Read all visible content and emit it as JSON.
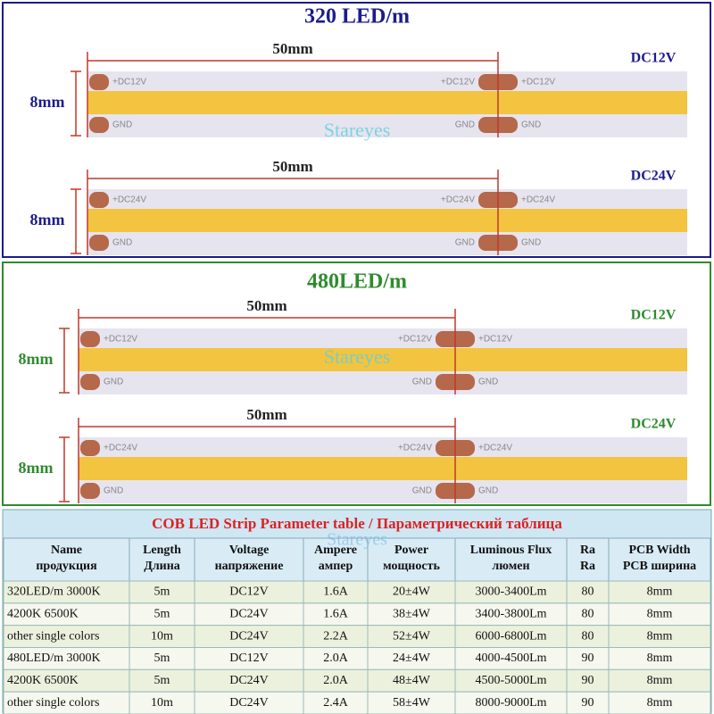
{
  "sections": [
    {
      "title": "320 LED/m",
      "watermark": "Stareyes",
      "strips": [
        {
          "length": "50mm",
          "width": "8mm",
          "voltage": "DC12V",
          "positive_label": "+DC12V",
          "ground_label": "GND"
        },
        {
          "length": "50mm",
          "width": "8mm",
          "voltage": "DC24V",
          "positive_label": "+DC24V",
          "ground_label": "GND"
        }
      ]
    },
    {
      "title": "480LED/m",
      "watermark": "Stareyes",
      "strips": [
        {
          "length": "50mm",
          "width": "8mm",
          "voltage": "DC12V",
          "positive_label": "+DC12V",
          "ground_label": "GND"
        },
        {
          "length": "50mm",
          "width": "8mm",
          "voltage": "DC24V",
          "positive_label": "+DC24V",
          "ground_label": "GND"
        }
      ]
    }
  ],
  "table": {
    "title": "COB LED Strip Parameter table / Параметрический таблица",
    "watermark": "Stareyes",
    "header": [
      [
        "Name",
        "продукция"
      ],
      [
        "Length",
        "Длина"
      ],
      [
        "Voltage",
        "напряжение"
      ],
      [
        "Ampere",
        "ампер"
      ],
      [
        "Power",
        "мощность"
      ],
      [
        "Luminous Flux",
        "люмен"
      ],
      [
        "Ra",
        "Ra"
      ],
      [
        "PCB Width",
        "PCB ширина"
      ]
    ],
    "rows": [
      [
        "320LED/m 3000K",
        "5m",
        "DC12V",
        "1.6A",
        "20±4W",
        "3000-3400Lm",
        "80",
        "8mm"
      ],
      [
        "4200K 6500K",
        "5m",
        "DC24V",
        "1.6A",
        "38±4W",
        "3400-3800Lm",
        "80",
        "8mm"
      ],
      [
        "other single colors",
        "10m",
        "DC24V",
        "2.2A",
        "52±4W",
        "6000-6800Lm",
        "80",
        "8mm"
      ],
      [
        "480LED/m 3000K",
        "5m",
        "DC12V",
        "2.0A",
        "24±4W",
        "4000-4500Lm",
        "90",
        "8mm"
      ],
      [
        "4200K 6500K",
        "5m",
        "DC24V",
        "2.0A",
        "48±4W",
        "4500-5000Lm",
        "90",
        "8mm"
      ],
      [
        "other single colors",
        "10m",
        "DC24V",
        "2.4A",
        "58±4W",
        "8000-9000Lm",
        "90",
        "8mm"
      ]
    ]
  }
}
